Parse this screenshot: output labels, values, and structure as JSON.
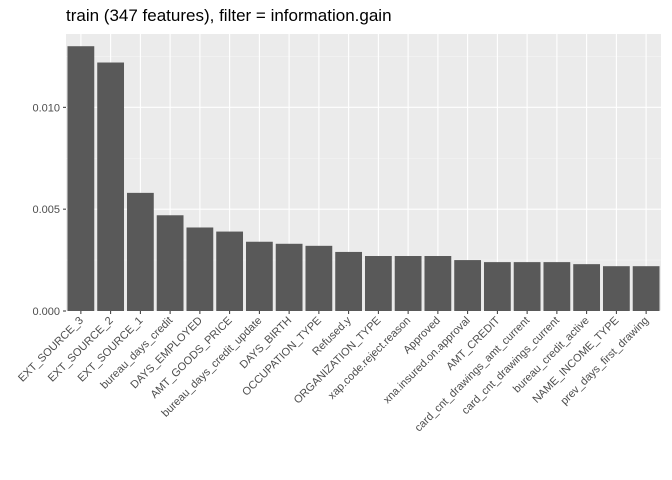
{
  "chart_data": {
    "type": "bar",
    "title": "train (347 features), filter = information.gain",
    "xlabel": "",
    "ylabel": "",
    "categories": [
      "EXT_SOURCE_3",
      "EXT_SOURCE_2",
      "EXT_SOURCE_1",
      "bureau_days_credit",
      "DAYS_EMPLOYED",
      "AMT_GOODS_PRICE",
      "bureau_days_credit_update",
      "DAYS_BIRTH",
      "OCCUPATION_TYPE",
      "Refused.y",
      "ORGANIZATION_TYPE",
      "xap.code.reject.reason",
      "Approved",
      "xna.insured.on.approval",
      "AMT_CREDIT",
      "card_cnt_drawings_amt_current",
      "card_cnt_drawings_current",
      "bureau_credit_active",
      "NAME_INCOME_TYPE",
      "prev_days_first_drawing"
    ],
    "values": [
      0.013,
      0.0122,
      0.0058,
      0.0047,
      0.0041,
      0.0039,
      0.0034,
      0.0033,
      0.0032,
      0.0029,
      0.0027,
      0.0027,
      0.0027,
      0.0025,
      0.0024,
      0.0024,
      0.0024,
      0.0023,
      0.0022,
      0.0022
    ],
    "ylim": [
      0,
      0.0136
    ],
    "yticks": [
      0.0,
      0.005,
      0.01
    ],
    "ytick_labels": [
      "0.000",
      "0.005",
      "0.010"
    ],
    "grid": true,
    "colors": {
      "bar": "#595959",
      "panel": "#ebebeb",
      "grid_major": "#ffffff",
      "grid_minor": "#f5f5f5",
      "text": "#4d4d4d",
      "tick": "#333333"
    }
  }
}
